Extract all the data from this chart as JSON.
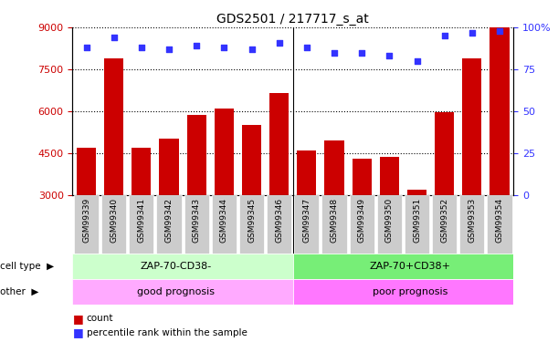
{
  "title": "GDS2501 / 217717_s_at",
  "samples": [
    "GSM99339",
    "GSM99340",
    "GSM99341",
    "GSM99342",
    "GSM99343",
    "GSM99344",
    "GSM99345",
    "GSM99346",
    "GSM99347",
    "GSM99348",
    "GSM99349",
    "GSM99350",
    "GSM99351",
    "GSM99352",
    "GSM99353",
    "GSM99354"
  ],
  "counts": [
    4700,
    7900,
    4700,
    5000,
    5850,
    6100,
    5500,
    6650,
    4600,
    4950,
    4300,
    4350,
    3200,
    5950,
    7900,
    9000
  ],
  "percentile_ranks": [
    88,
    94,
    88,
    87,
    89,
    88,
    87,
    91,
    88,
    85,
    85,
    83,
    80,
    95,
    97,
    98
  ],
  "bar_color": "#cc0000",
  "dot_color": "#3333ff",
  "ylim_left": [
    3000,
    9000
  ],
  "ylim_right": [
    0,
    100
  ],
  "yticks_left": [
    3000,
    4500,
    6000,
    7500,
    9000
  ],
  "yticks_right": [
    0,
    25,
    50,
    75,
    100
  ],
  "cell_type_labels": [
    "ZAP-70-CD38-",
    "ZAP-70+CD38+"
  ],
  "cell_type_colors": [
    "#ccffcc",
    "#77ee77"
  ],
  "other_labels": [
    "good prognosis",
    "poor prognosis"
  ],
  "other_colors": [
    "#ffaaff",
    "#ff77ff"
  ],
  "split_index": 8,
  "legend_count_label": "count",
  "legend_pct_label": "percentile rank within the sample",
  "ylabel_left_color": "#cc0000",
  "ylabel_right_color": "#3333ff",
  "tick_label_bg": "#cccccc"
}
